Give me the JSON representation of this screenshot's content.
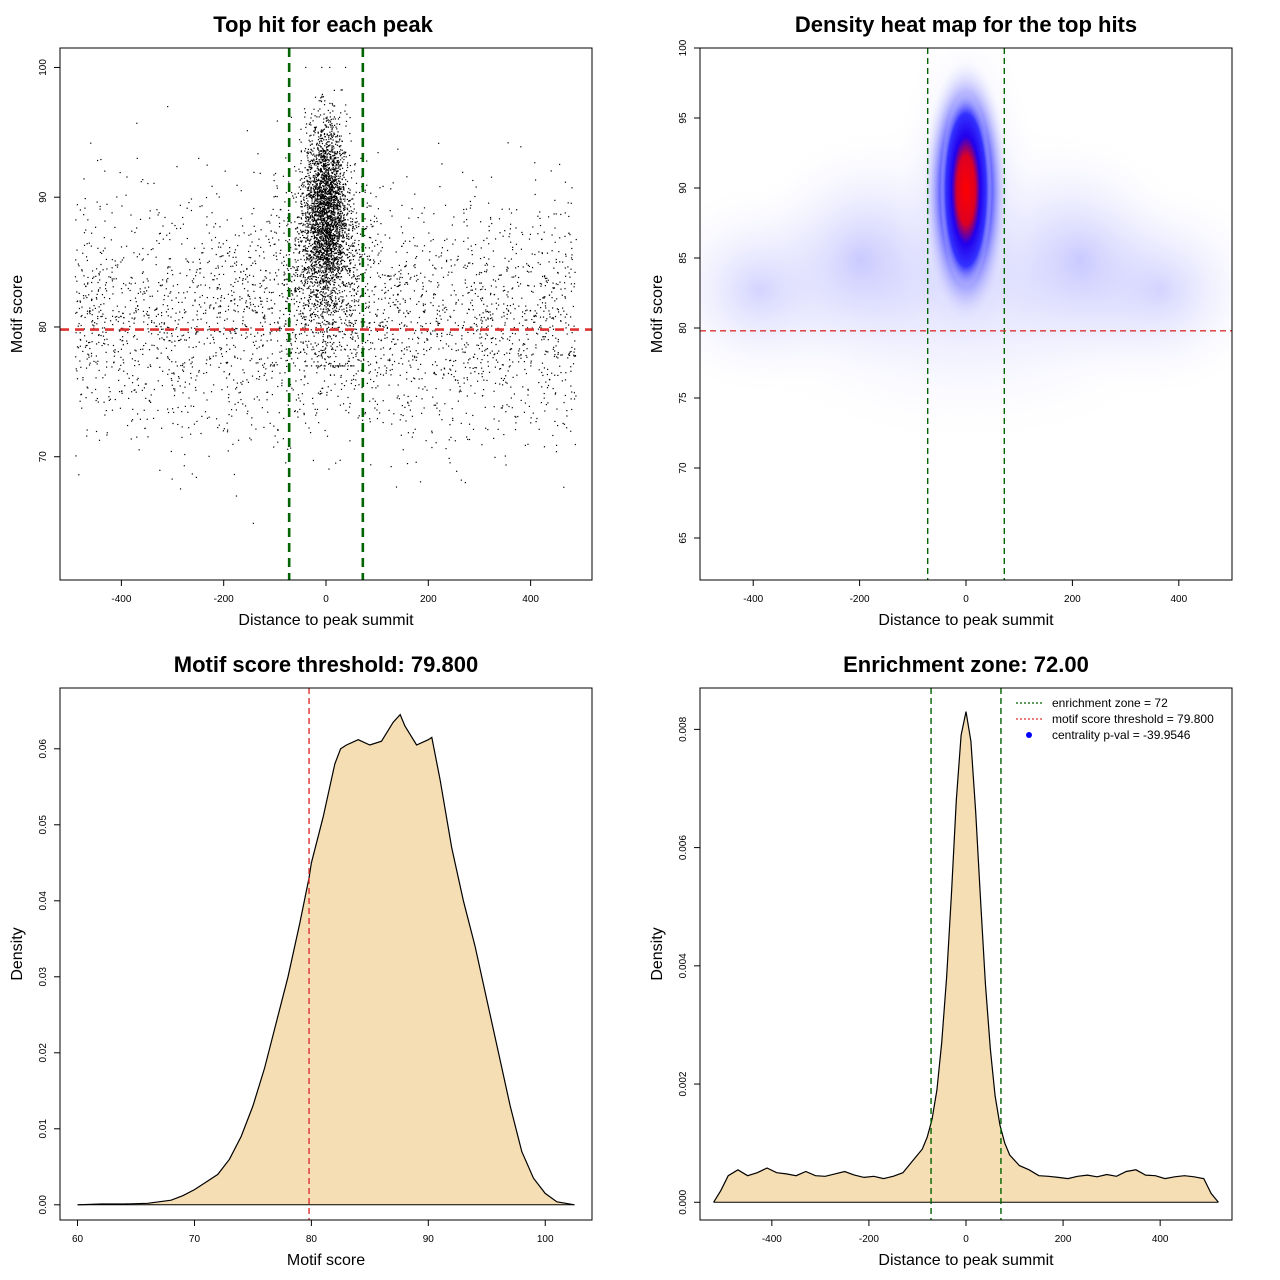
{
  "chart_data": [
    {
      "id": "p1",
      "type": "scatter",
      "title": "Top hit for each peak",
      "xlabel": "Distance to peak summit",
      "ylabel": "Motif score",
      "xlim": [
        -520,
        520
      ],
      "ylim": [
        60.5,
        101.5
      ],
      "xticks": [
        -400,
        -200,
        0,
        200,
        400
      ],
      "xtick_labels": [
        "-400",
        "-200",
        "0",
        "200",
        "400"
      ],
      "yticks": [
        70,
        80,
        90,
        100
      ],
      "ytick_labels": [
        "70",
        "80",
        "90",
        "100"
      ],
      "threshold_y": 79.8,
      "zone_x": [
        -72,
        72
      ],
      "point_color": "#000000",
      "zone_color": "#006400",
      "threshold_color": "#dd3333",
      "grid": false
    },
    {
      "id": "p2",
      "type": "heatmap",
      "title": "Density heat map for the top hits",
      "xlabel": "Distance to peak summit",
      "ylabel": "Motif score",
      "xlim": [
        -500,
        500
      ],
      "ylim": [
        62,
        100
      ],
      "xticks": [
        -400,
        -200,
        0,
        200,
        400
      ],
      "xtick_labels": [
        "-400",
        "-200",
        "0",
        "200",
        "400"
      ],
      "yticks": [
        65,
        70,
        75,
        80,
        85,
        90,
        95,
        100
      ],
      "ytick_labels": [
        "65",
        "70",
        "75",
        "80",
        "85",
        "90",
        "95",
        "100"
      ],
      "threshold_y": 79.8,
      "zone_x": [
        -72,
        72
      ],
      "hotspot": {
        "x": 0,
        "y": 89.5
      },
      "colors": [
        "#ffffff",
        "#0000ff",
        "#ff0000"
      ],
      "grid": false
    },
    {
      "id": "p3",
      "type": "area",
      "title": "Motif score threshold: 79.800",
      "xlabel": "Motif score",
      "ylabel": "Density",
      "xlim": [
        58.5,
        104
      ],
      "ylim": [
        -0.002,
        0.068
      ],
      "xticks": [
        60,
        70,
        80,
        90,
        100
      ],
      "xtick_labels": [
        "60",
        "70",
        "80",
        "90",
        "100"
      ],
      "yticks": [
        0,
        0.01,
        0.02,
        0.03,
        0.04,
        0.05,
        0.06
      ],
      "ytick_labels": [
        "0.00",
        "0.01",
        "0.02",
        "0.03",
        "0.04",
        "0.05",
        "0.06"
      ],
      "threshold_x": 79.8,
      "fill_color": "#f5deb3",
      "x": [
        60,
        62,
        64,
        66,
        68,
        69,
        70,
        71,
        72,
        73,
        74,
        75,
        76,
        77,
        78,
        79,
        79.8,
        80,
        81,
        82,
        82.5,
        83,
        84,
        85,
        86,
        87,
        87.6,
        88,
        89,
        90,
        90.3,
        91,
        92,
        93,
        94,
        95,
        96,
        97,
        98,
        99,
        100,
        101,
        102.5
      ],
      "y": [
        0.0,
        0.0001,
        0.0001,
        0.0002,
        0.0006,
        0.0012,
        0.002,
        0.003,
        0.004,
        0.006,
        0.009,
        0.013,
        0.018,
        0.024,
        0.03,
        0.037,
        0.043,
        0.045,
        0.051,
        0.058,
        0.06,
        0.0605,
        0.0612,
        0.0605,
        0.061,
        0.0635,
        0.0645,
        0.063,
        0.0605,
        0.0612,
        0.0615,
        0.056,
        0.047,
        0.04,
        0.034,
        0.027,
        0.02,
        0.013,
        0.007,
        0.0035,
        0.0015,
        0.0004,
        0.0
      ]
    },
    {
      "id": "p4",
      "type": "area",
      "title": "Enrichment zone: 72.00",
      "xlabel": "Distance to peak summit",
      "ylabel": "Density",
      "xlim": [
        -548,
        548
      ],
      "ylim": [
        -0.0003,
        0.0087
      ],
      "xticks": [
        -400,
        -200,
        0,
        200,
        400
      ],
      "xtick_labels": [
        "-400",
        "-200",
        "0",
        "200",
        "400"
      ],
      "yticks": [
        0,
        0.002,
        0.004,
        0.006,
        0.008
      ],
      "ytick_labels": [
        "0.000",
        "0.002",
        "0.004",
        "0.006",
        "0.008"
      ],
      "zone_x": [
        -72,
        72
      ],
      "fill_color": "#f5deb3",
      "x": [
        -520,
        -505,
        -490,
        -470,
        -450,
        -430,
        -410,
        -390,
        -370,
        -350,
        -330,
        -310,
        -290,
        -270,
        -250,
        -230,
        -210,
        -190,
        -170,
        -150,
        -130,
        -110,
        -90,
        -80,
        -70,
        -60,
        -50,
        -40,
        -30,
        -20,
        -10,
        0,
        10,
        20,
        30,
        40,
        50,
        60,
        70,
        80,
        90,
        110,
        130,
        150,
        170,
        190,
        210,
        230,
        250,
        270,
        290,
        310,
        330,
        350,
        370,
        390,
        410,
        430,
        450,
        470,
        490,
        505,
        520
      ],
      "y": [
        0.0,
        0.0002,
        0.00045,
        0.00055,
        0.00045,
        0.0005,
        0.00058,
        0.0005,
        0.00048,
        0.00045,
        0.00052,
        0.00045,
        0.00044,
        0.00048,
        0.00052,
        0.00046,
        0.00042,
        0.00044,
        0.0004,
        0.00044,
        0.0005,
        0.0007,
        0.0009,
        0.0011,
        0.0014,
        0.0019,
        0.0027,
        0.0038,
        0.0052,
        0.0068,
        0.0079,
        0.0083,
        0.0078,
        0.0066,
        0.0051,
        0.0037,
        0.0026,
        0.0018,
        0.0013,
        0.001,
        0.0008,
        0.00062,
        0.00055,
        0.00045,
        0.00044,
        0.00042,
        0.0004,
        0.00044,
        0.00046,
        0.00043,
        0.00047,
        0.00044,
        0.00052,
        0.00055,
        0.00046,
        0.00045,
        0.0004,
        0.00043,
        0.00045,
        0.00043,
        0.0004,
        0.00015,
        0.0
      ]
    }
  ],
  "legend": [
    {
      "label": "enrichment zone = 72",
      "color": "#006400",
      "style": "dotted-line"
    },
    {
      "label": "motif score threshold = 79.800",
      "color": "#dd3333",
      "style": "dotted-line"
    },
    {
      "label": "centrality p-val = -39.9546",
      "color": "#0000ff",
      "style": "point"
    }
  ]
}
